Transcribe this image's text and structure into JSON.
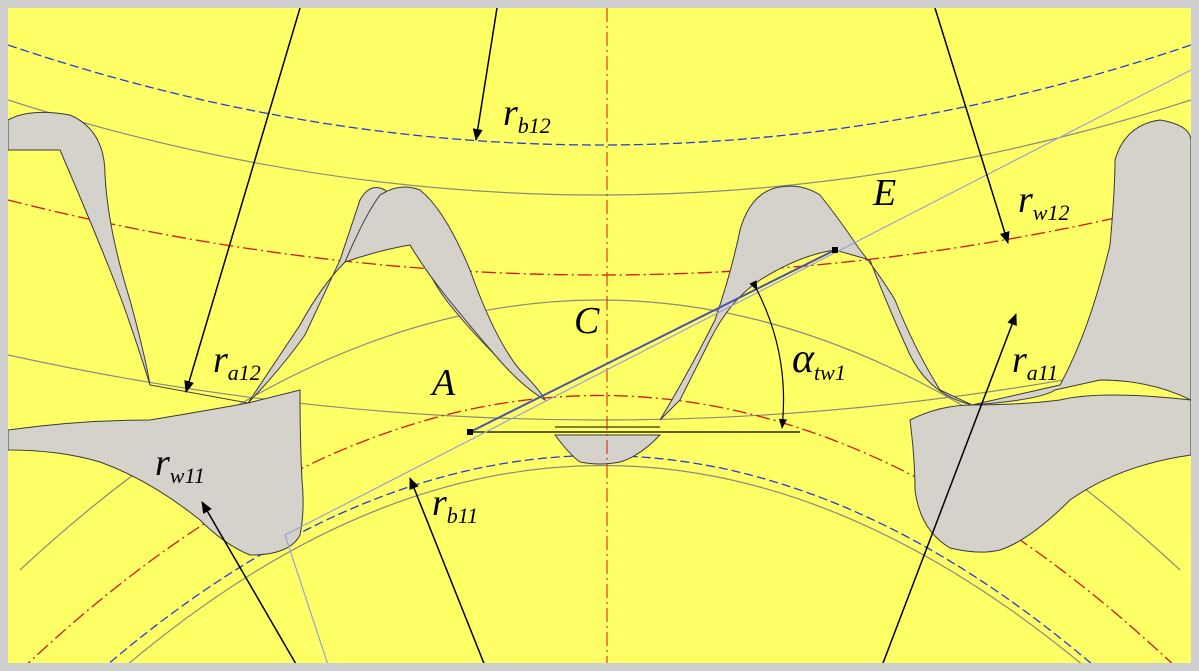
{
  "colors": {
    "background": "#ffff66",
    "frame": "#cfcfcf",
    "gear_body": "#d5d1cb",
    "base_circle": "#1f3fd8",
    "pitch_circle": "#e01010",
    "thin_circle": "#8a8a82",
    "line_of_action": "#8b8fd0",
    "arrow": "#000000"
  },
  "labels": {
    "rb12": {
      "main": "r",
      "sub": "b12"
    },
    "rw12": {
      "main": "r",
      "sub": "w12"
    },
    "ra12": {
      "main": "r",
      "sub": "a12"
    },
    "ra11": {
      "main": "r",
      "sub": "a11"
    },
    "rw11": {
      "main": "r",
      "sub": "w11"
    },
    "rb11": {
      "main": "r",
      "sub": "b11"
    },
    "alpha": {
      "main": "α",
      "sub": "tw1"
    },
    "point_A": "A",
    "point_C": "C",
    "point_E": "E"
  }
}
